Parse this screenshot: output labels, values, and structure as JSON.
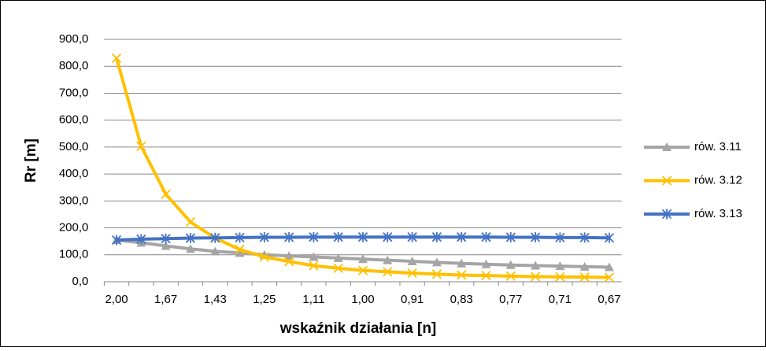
{
  "chart_data": {
    "type": "line",
    "ylabel": "Rr [m]",
    "xlabel": "wskaźnik działania  [n]",
    "categories": [
      "2,00",
      null,
      "1,67",
      null,
      "1,43",
      null,
      "1,25",
      null,
      "1,11",
      null,
      "1,00",
      null,
      "0,91",
      null,
      "0,83",
      null,
      "0,77",
      null,
      "0,71",
      null,
      "0,67"
    ],
    "series": [
      {
        "name": "rów. 3.11",
        "color": "#a5a5a5",
        "marker": "triangle",
        "values": [
          155,
          145,
          133,
          122,
          113,
          107,
          100,
          96,
          92,
          88,
          84,
          80,
          76,
          72,
          68,
          65,
          62,
          60,
          58,
          56,
          54
        ]
      },
      {
        "name": "rów. 3.12",
        "color": "#ffc000",
        "marker": "x",
        "values": [
          830,
          503,
          325,
          222,
          162,
          120,
          92,
          75,
          60,
          50,
          42,
          37,
          32,
          28,
          25,
          23,
          21,
          19,
          18,
          17,
          16
        ]
      },
      {
        "name": "rów. 3.13",
        "color": "#4472c4",
        "marker": "star",
        "values": [
          155,
          158,
          160,
          162,
          163,
          164,
          165,
          165,
          166,
          166,
          166,
          166,
          166,
          166,
          166,
          166,
          165,
          165,
          164,
          164,
          163
        ]
      }
    ],
    "ylim": [
      0,
      900
    ],
    "yticks": [
      {
        "value": 0,
        "label": "0,0"
      },
      {
        "value": 100,
        "label": "100,0"
      },
      {
        "value": 200,
        "label": "200,0"
      },
      {
        "value": 300,
        "label": "300,0"
      },
      {
        "value": 400,
        "label": "400,0"
      },
      {
        "value": 500,
        "label": "500,0"
      },
      {
        "value": 600,
        "label": "600,0"
      },
      {
        "value": 700,
        "label": "700,0"
      },
      {
        "value": 800,
        "label": "800,0"
      },
      {
        "value": 900,
        "label": "900,0"
      }
    ],
    "grid": true,
    "legend": "right"
  }
}
